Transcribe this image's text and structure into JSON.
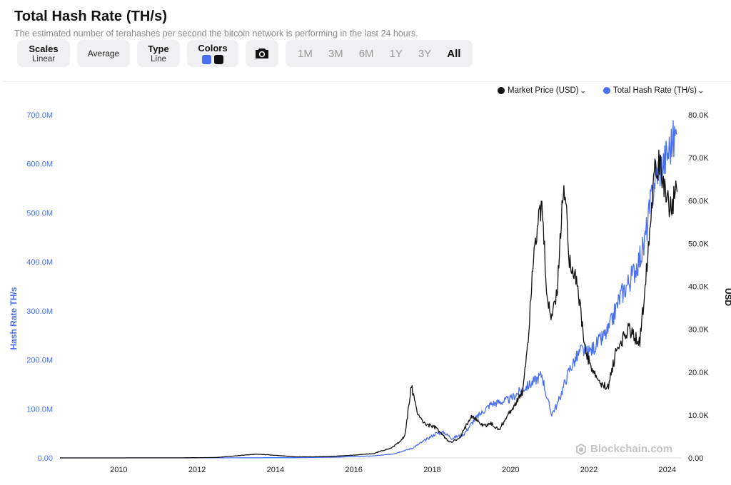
{
  "header": {
    "title": "Total Hash Rate (TH/s)",
    "subtitle": "The estimated number of terahashes per second the bitcoin network is performing in the last 24 hours."
  },
  "toolbar": {
    "scales": {
      "label": "Scales",
      "value": "Linear"
    },
    "average": {
      "label": "Average"
    },
    "type": {
      "label": "Type",
      "value": "Line"
    },
    "colors": {
      "label": "Colors",
      "swatches": [
        "#4a6ff0",
        "#111111"
      ]
    },
    "camera_icon": "camera-icon",
    "ranges": [
      "1M",
      "3M",
      "6M",
      "1Y",
      "3Y",
      "All"
    ],
    "active_range": "All"
  },
  "legend": {
    "price": {
      "label": "Market Price (USD)",
      "color": "#111111"
    },
    "hash": {
      "label": "Total Hash Rate (TH/s)",
      "color": "#4a6ff0"
    }
  },
  "watermark": {
    "text": "Blockchain.com",
    "icon": "blockchain-logo-icon"
  },
  "chart_data": {
    "type": "line",
    "title": "Total Hash Rate (TH/s)",
    "xlabel": "",
    "x_ticks": [
      "2010",
      "2012",
      "2014",
      "2016",
      "2018",
      "2020",
      "2022",
      "2024"
    ],
    "x_range": [
      2009.0,
      2024.85
    ],
    "left_axis": {
      "label": "Hash Rate TH/s",
      "color": "#4a6ff0",
      "range": [
        0,
        700000000
      ],
      "ticks": [
        0,
        100000000,
        200000000,
        300000000,
        400000000,
        500000000,
        600000000,
        700000000
      ],
      "tick_labels": [
        "0.00",
        "100.0M",
        "200.0M",
        "300.0M",
        "400.0M",
        "500.0M",
        "600.0M",
        "700.0M"
      ]
    },
    "right_axis": {
      "label": "USD",
      "color": "#111111",
      "range": [
        0,
        80000
      ],
      "ticks": [
        0,
        10000,
        20000,
        30000,
        40000,
        50000,
        60000,
        70000,
        80000
      ],
      "tick_labels": [
        "0.00",
        "10.0K",
        "20.0K",
        "30.0K",
        "40.0K",
        "50.0K",
        "60.0K",
        "70.0K",
        "80.0K"
      ]
    },
    "grid": false,
    "legend_position": "top-right",
    "series": [
      {
        "name": "Total Hash Rate (TH/s)",
        "axis": "left",
        "color": "#4a6ff0",
        "x": [
          2009.0,
          2011.0,
          2013.0,
          2014.0,
          2015.0,
          2016.0,
          2017.0,
          2017.5,
          2018.0,
          2018.3,
          2018.6,
          2018.8,
          2019.0,
          2019.3,
          2019.6,
          2020.0,
          2020.3,
          2020.5,
          2020.8,
          2021.0,
          2021.3,
          2021.45,
          2021.55,
          2021.7,
          2022.0,
          2022.3,
          2022.5,
          2022.8,
          2023.0,
          2023.3,
          2023.6,
          2023.9,
          2024.0,
          2024.2,
          2024.4,
          2024.6,
          2024.75
        ],
        "y": [
          0,
          0,
          100000,
          300000,
          500000,
          1500000,
          4000000,
          8000000,
          20000000,
          35000000,
          50000000,
          52000000,
          40000000,
          48000000,
          80000000,
          110000000,
          115000000,
          120000000,
          140000000,
          150000000,
          170000000,
          115000000,
          90000000,
          110000000,
          180000000,
          220000000,
          215000000,
          240000000,
          260000000,
          330000000,
          370000000,
          430000000,
          480000000,
          580000000,
          600000000,
          640000000,
          660000000
        ]
      },
      {
        "name": "Market Price (USD)",
        "axis": "right",
        "color": "#111111",
        "x": [
          2009.0,
          2011.0,
          2012.0,
          2013.0,
          2013.9,
          2014.0,
          2014.5,
          2015.0,
          2015.5,
          2016.0,
          2016.5,
          2017.0,
          2017.5,
          2017.8,
          2017.97,
          2018.1,
          2018.3,
          2018.6,
          2018.9,
          2019.0,
          2019.2,
          2019.5,
          2019.8,
          2020.0,
          2020.2,
          2020.5,
          2020.8,
          2020.95,
          2021.1,
          2021.3,
          2021.45,
          2021.55,
          2021.7,
          2021.86,
          2022.0,
          2022.2,
          2022.4,
          2022.6,
          2022.85,
          2023.0,
          2023.2,
          2023.5,
          2023.8,
          2023.95,
          2024.1,
          2024.2,
          2024.4,
          2024.6,
          2024.75
        ],
        "y": [
          0,
          10,
          10,
          100,
          800,
          900,
          600,
          250,
          250,
          400,
          650,
          1000,
          2500,
          5000,
          17000,
          11000,
          8000,
          7000,
          4000,
          3800,
          4500,
          10000,
          7500,
          8000,
          6500,
          11000,
          15000,
          28000,
          50000,
          58000,
          35000,
          33000,
          40000,
          65000,
          47000,
          41000,
          25000,
          20000,
          16500,
          17000,
          25000,
          30000,
          27000,
          42000,
          60000,
          70000,
          65000,
          58000,
          62000
        ]
      }
    ]
  }
}
